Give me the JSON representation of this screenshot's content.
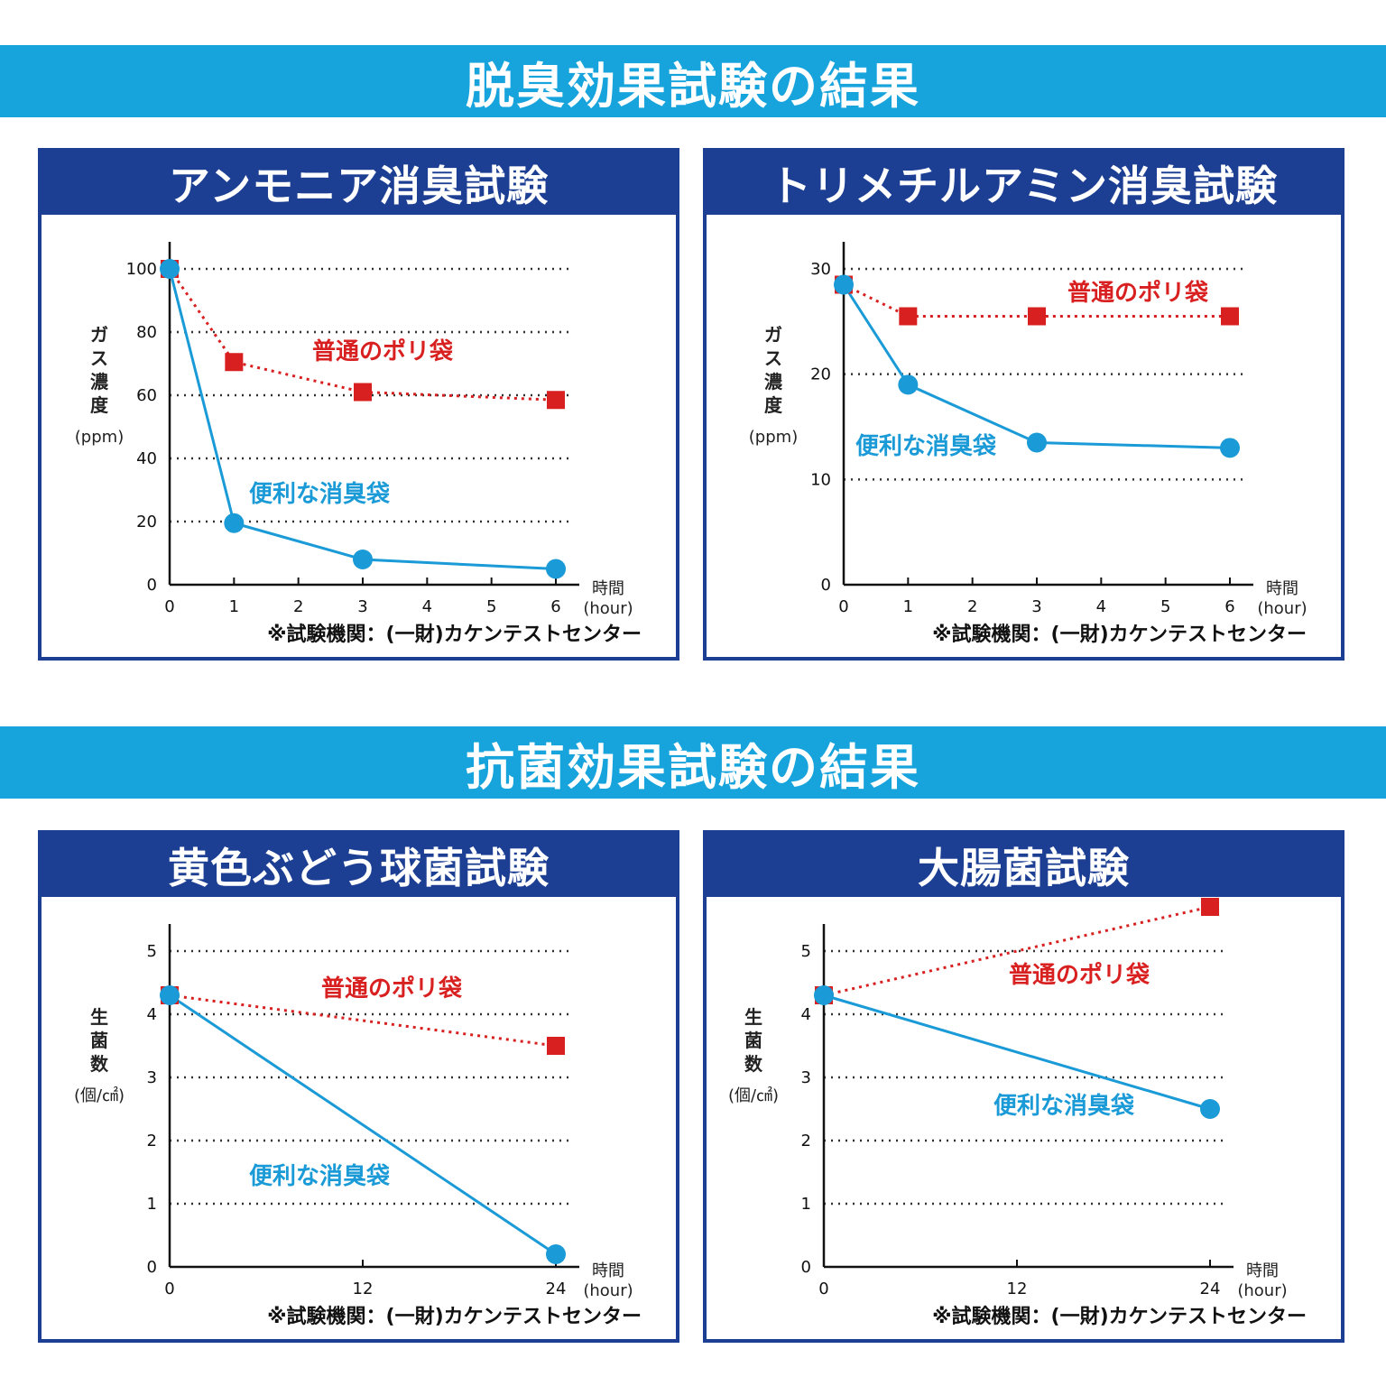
{
  "banners": {
    "deodorization": "脱臭効果試験の結果",
    "antibacterial": "抗菌効果試験の結果"
  },
  "colors": {
    "banner": "#17a3dc",
    "panel": "#1c3f94",
    "blue_series": "#1a9ad6",
    "red_series": "#d92020"
  },
  "chart_data": [
    {
      "type": "line",
      "title": "アンモニア消臭試験",
      "ylabel": [
        "ガ",
        "ス",
        "濃",
        "度"
      ],
      "yunit": "(ppm)",
      "xlabel": "時間",
      "xunit": "(hour)",
      "source": "※試験機関：(一財)カケンテストセンター",
      "xticks": [
        "0",
        "1",
        "2",
        "3",
        "4",
        "5",
        "6"
      ],
      "xlim": [
        0,
        6
      ],
      "yticks": [
        "0",
        "20",
        "40",
        "60",
        "80",
        "100"
      ],
      "ylim": [
        0,
        100
      ],
      "series": [
        {
          "name": "普通のポリ袋",
          "x": [
            0,
            1,
            3,
            6
          ],
          "y": [
            100,
            70.5,
            61,
            58.5
          ]
        },
        {
          "name": "便利な消臭袋",
          "x": [
            0,
            1,
            3,
            6
          ],
          "y": [
            100,
            19.5,
            8,
            5
          ]
        }
      ]
    },
    {
      "type": "line",
      "title": "トリメチルアミン消臭試験",
      "ylabel": [
        "ガ",
        "ス",
        "濃",
        "度"
      ],
      "yunit": "(ppm)",
      "xlabel": "時間",
      "xunit": "(hour)",
      "source": "※試験機関：(一財)カケンテストセンター",
      "xticks": [
        "0",
        "1",
        "2",
        "3",
        "4",
        "5",
        "6"
      ],
      "xlim": [
        0,
        6
      ],
      "yticks": [
        "0",
        "10",
        "20",
        "30"
      ],
      "ylim": [
        0,
        30
      ],
      "series": [
        {
          "name": "普通のポリ袋",
          "x": [
            0,
            1,
            3,
            6
          ],
          "y": [
            28.5,
            25.5,
            25.5,
            25.5
          ]
        },
        {
          "name": "便利な消臭袋",
          "x": [
            0,
            1,
            3,
            6
          ],
          "y": [
            28.5,
            19,
            13.5,
            13
          ]
        }
      ]
    },
    {
      "type": "line",
      "title": "黄色ぶどう球菌試験",
      "ylabel": [
        "生",
        "菌",
        "数"
      ],
      "yunit": "(個/㎠)",
      "xlabel": "時間",
      "xunit": "(hour)",
      "source": "※試験機関：(一財)カケンテストセンター",
      "xticks": [
        "0",
        "12",
        "24"
      ],
      "xlim": [
        0,
        24
      ],
      "yticks": [
        "0",
        "1",
        "2",
        "3",
        "4",
        "5"
      ],
      "ylim": [
        0,
        5
      ],
      "series": [
        {
          "name": "普通のポリ袋",
          "x": [
            0,
            24
          ],
          "y": [
            4.3,
            3.5
          ]
        },
        {
          "name": "便利な消臭袋",
          "x": [
            0,
            24
          ],
          "y": [
            4.3,
            0.2
          ]
        }
      ]
    },
    {
      "type": "line",
      "title": "大腸菌試験",
      "ylabel": [
        "生",
        "菌",
        "数"
      ],
      "yunit": "(個/㎠)",
      "xlabel": "時間",
      "xunit": "(hour)",
      "source": "※試験機関：(一財)カケンテストセンター",
      "xticks": [
        "0",
        "12",
        "24"
      ],
      "xlim": [
        0,
        24
      ],
      "yticks": [
        "0",
        "1",
        "2",
        "3",
        "4",
        "5"
      ],
      "ylim": [
        0,
        5
      ],
      "series": [
        {
          "name": "普通のポリ袋",
          "x": [
            0,
            24
          ],
          "y": [
            4.3,
            5.7
          ]
        },
        {
          "name": "便利な消臭袋",
          "x": [
            0,
            24
          ],
          "y": [
            4.3,
            2.5
          ]
        }
      ]
    }
  ]
}
